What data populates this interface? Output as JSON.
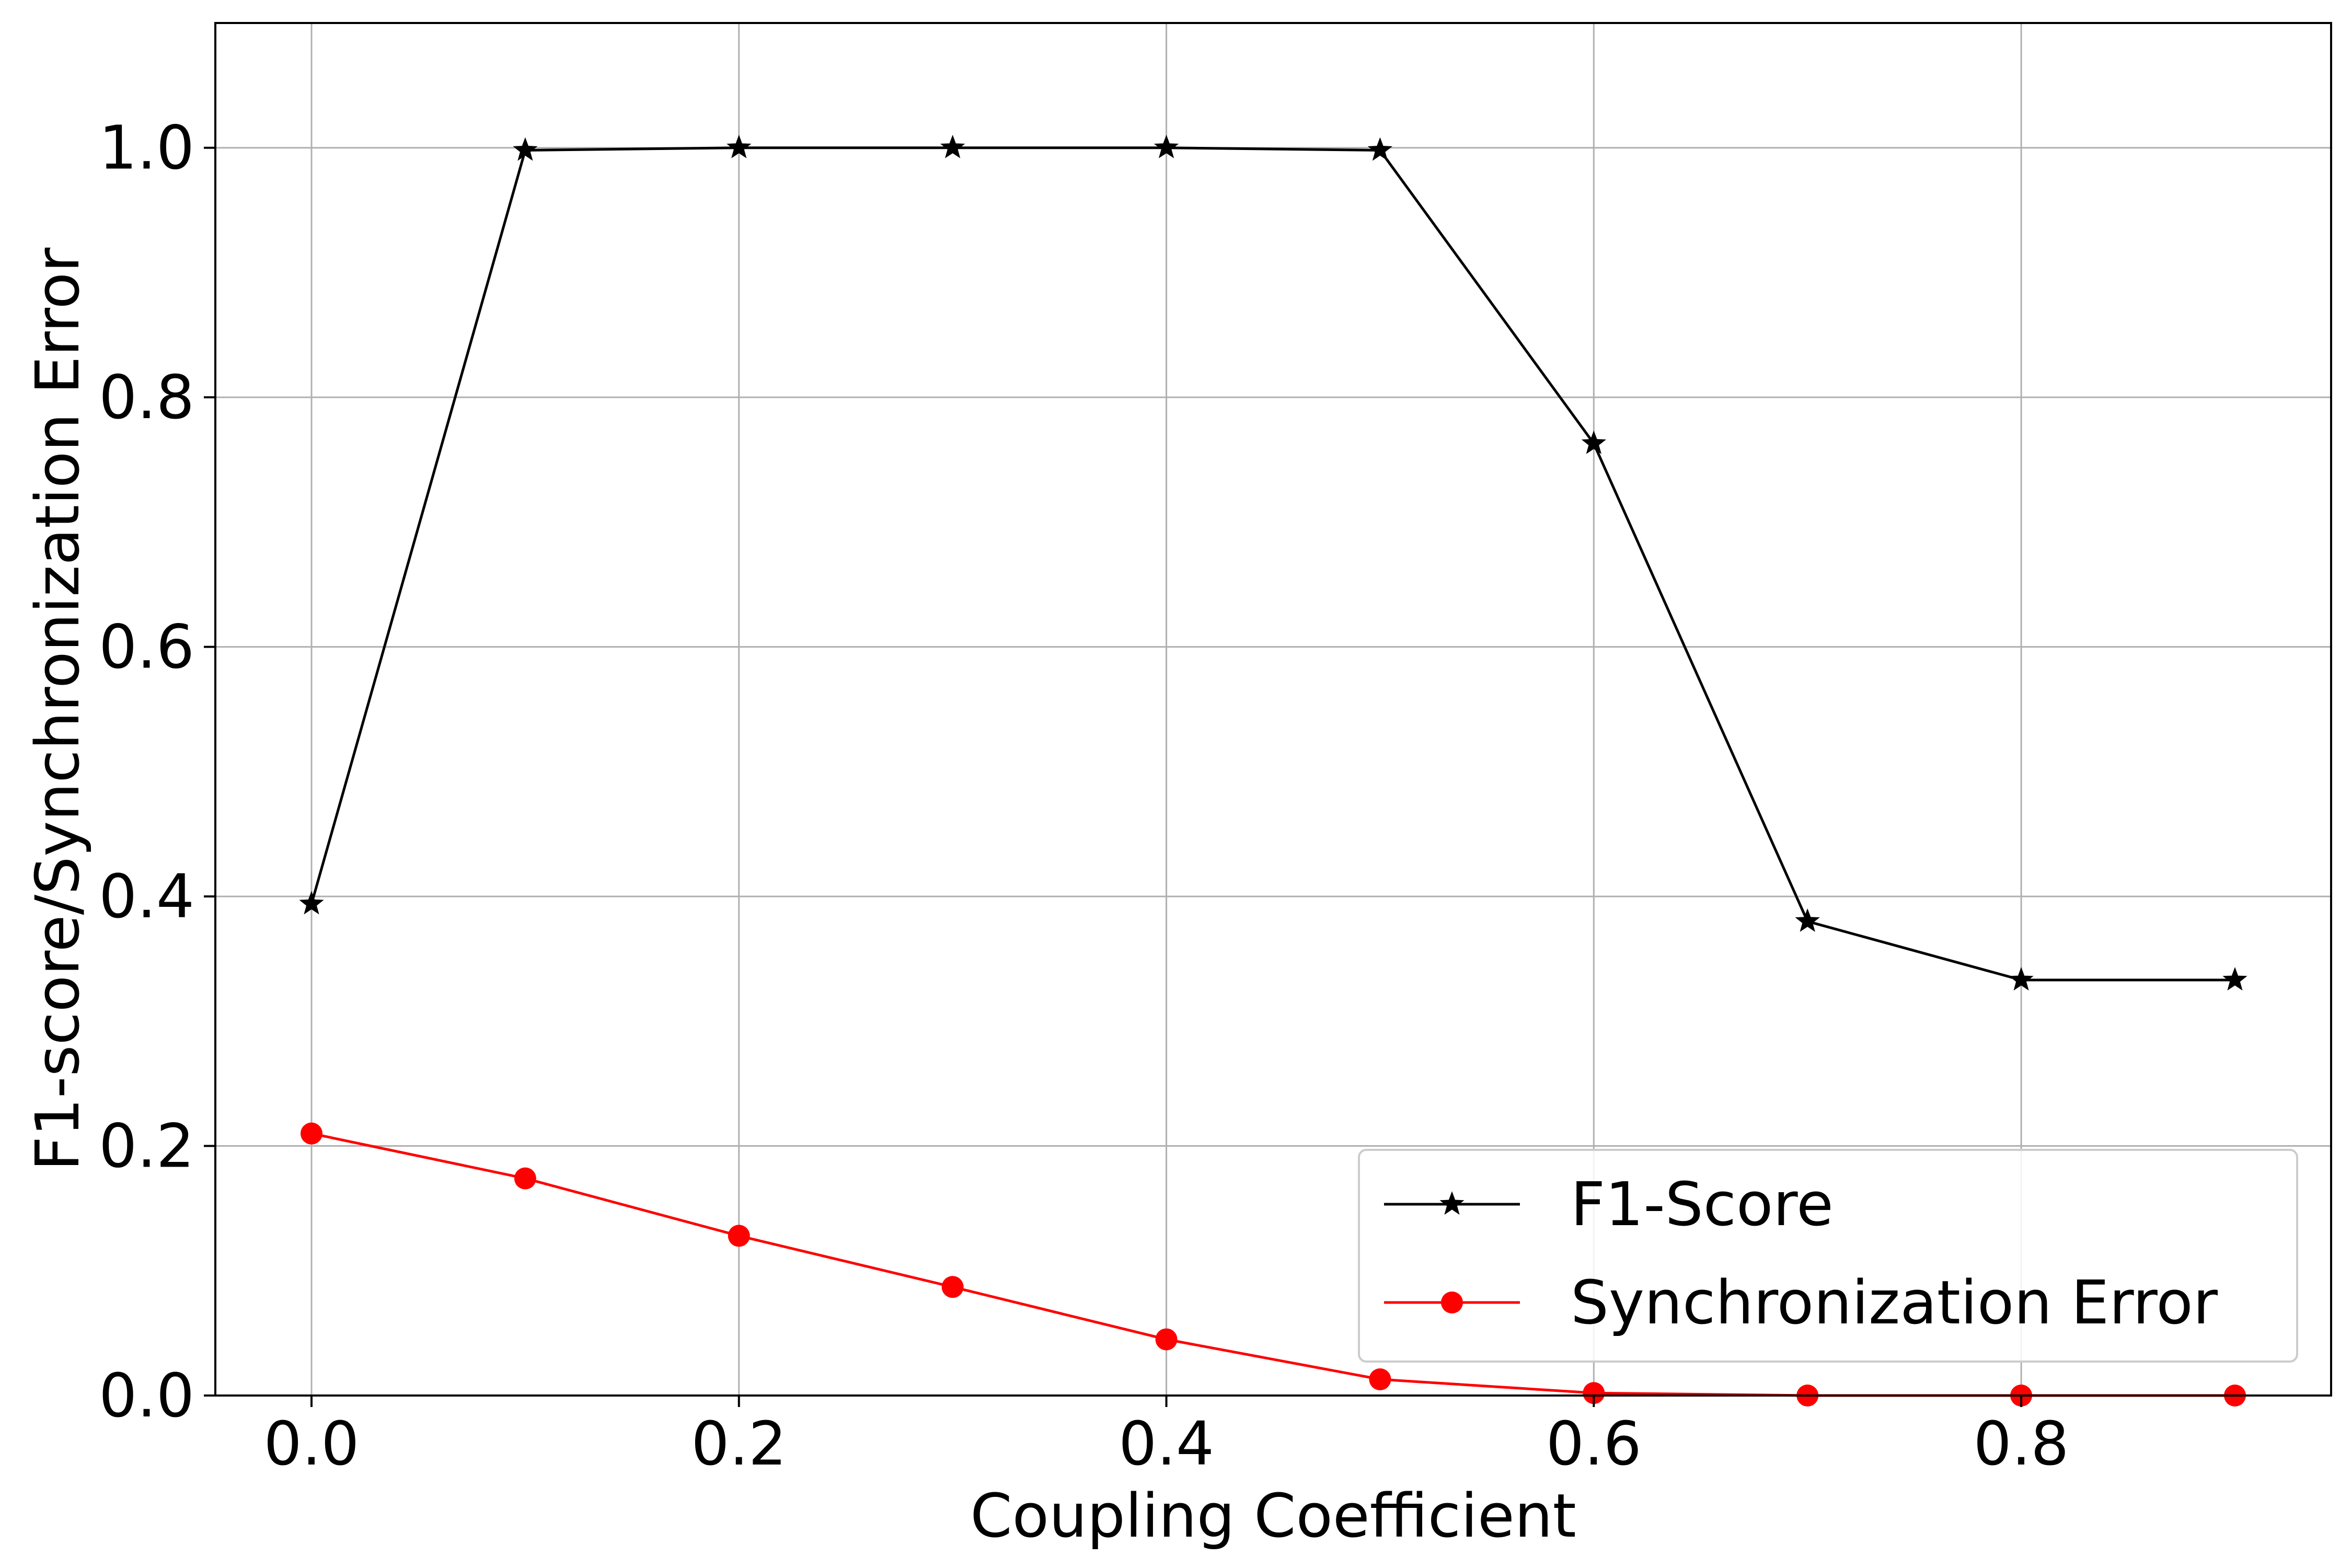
{
  "chart_data": {
    "type": "line",
    "xlabel": "Coupling Coefficient",
    "ylabel": "F1-score/Synchronization Error",
    "xlim": [
      -0.045,
      0.945
    ],
    "ylim": [
      0.0,
      1.1
    ],
    "xticks": [
      "0.0",
      "0.2",
      "0.4",
      "0.6",
      "0.8"
    ],
    "xtick_values": [
      0.0,
      0.2,
      0.4,
      0.6,
      0.8
    ],
    "yticks": [
      "0.0",
      "0.2",
      "0.4",
      "0.6",
      "0.8",
      "1.0"
    ],
    "ytick_values": [
      0.0,
      0.2,
      0.4,
      0.6,
      0.8,
      1.0
    ],
    "grid": true,
    "legend_position": "lower-right",
    "x": [
      0.0,
      0.1,
      0.2,
      0.3,
      0.4,
      0.5,
      0.6,
      0.7,
      0.8,
      0.9
    ],
    "series": [
      {
        "name": "F1-Score",
        "color": "#000000",
        "marker": "star",
        "values": [
          0.394,
          0.998,
          1.0,
          1.0,
          1.0,
          0.998,
          0.763,
          0.38,
          0.333,
          0.333
        ]
      },
      {
        "name": "Synchronization Error",
        "color": "#ff0000",
        "marker": "circle",
        "values": [
          0.21,
          0.174,
          0.128,
          0.087,
          0.045,
          0.013,
          0.002,
          0.0,
          0.0,
          0.0
        ]
      }
    ]
  }
}
